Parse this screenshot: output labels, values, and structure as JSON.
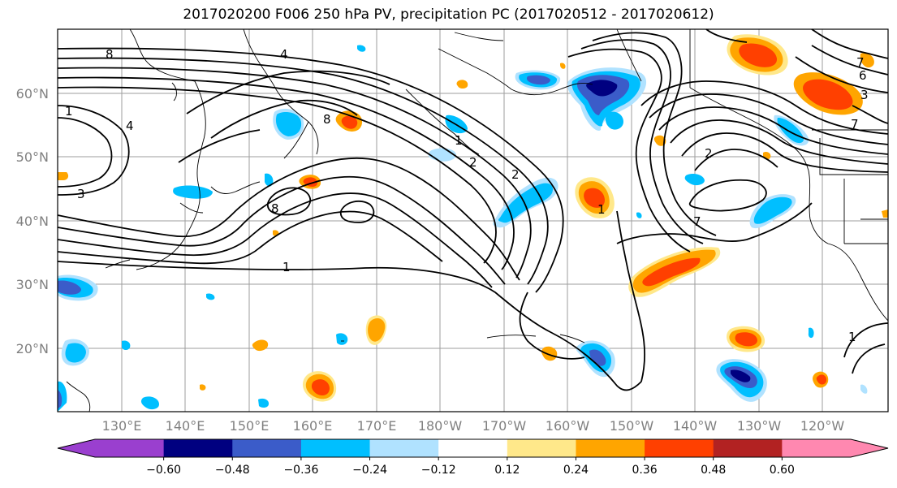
{
  "title": "2017020200 F006 250 hPa PV, precipitation PC (2017020512 - 2017020612)",
  "map": {
    "lat_labels": [
      "60°N",
      "50°N",
      "40°N",
      "30°N",
      "20°N"
    ],
    "lon_labels": [
      "130°E",
      "140°E",
      "150°E",
      "160°E",
      "170°E",
      "180°W",
      "170°W",
      "160°W",
      "150°W",
      "140°W",
      "130°W",
      "120°W"
    ],
    "contour_labels": [
      "8",
      "4",
      "1",
      "4",
      "3",
      "2",
      "8",
      "1",
      "1",
      "2",
      "1",
      "2",
      "7",
      "8",
      "1",
      "7",
      "7",
      "6",
      "3"
    ]
  },
  "colorbar": {
    "ticks": [
      "−0.60",
      "−0.48",
      "−0.36",
      "−0.24",
      "−0.12",
      "0.12",
      "0.24",
      "0.36",
      "0.48",
      "0.60"
    ],
    "colors": {
      "under": "#9a3fcf",
      "bins": [
        "#000080",
        "#3b5cc9",
        "#00bfff",
        "#b0e2ff",
        "#ffffff",
        "#ffe88a",
        "#ffa500",
        "#ff4000",
        "#b22222"
      ],
      "over": "#ff88b0"
    }
  }
}
